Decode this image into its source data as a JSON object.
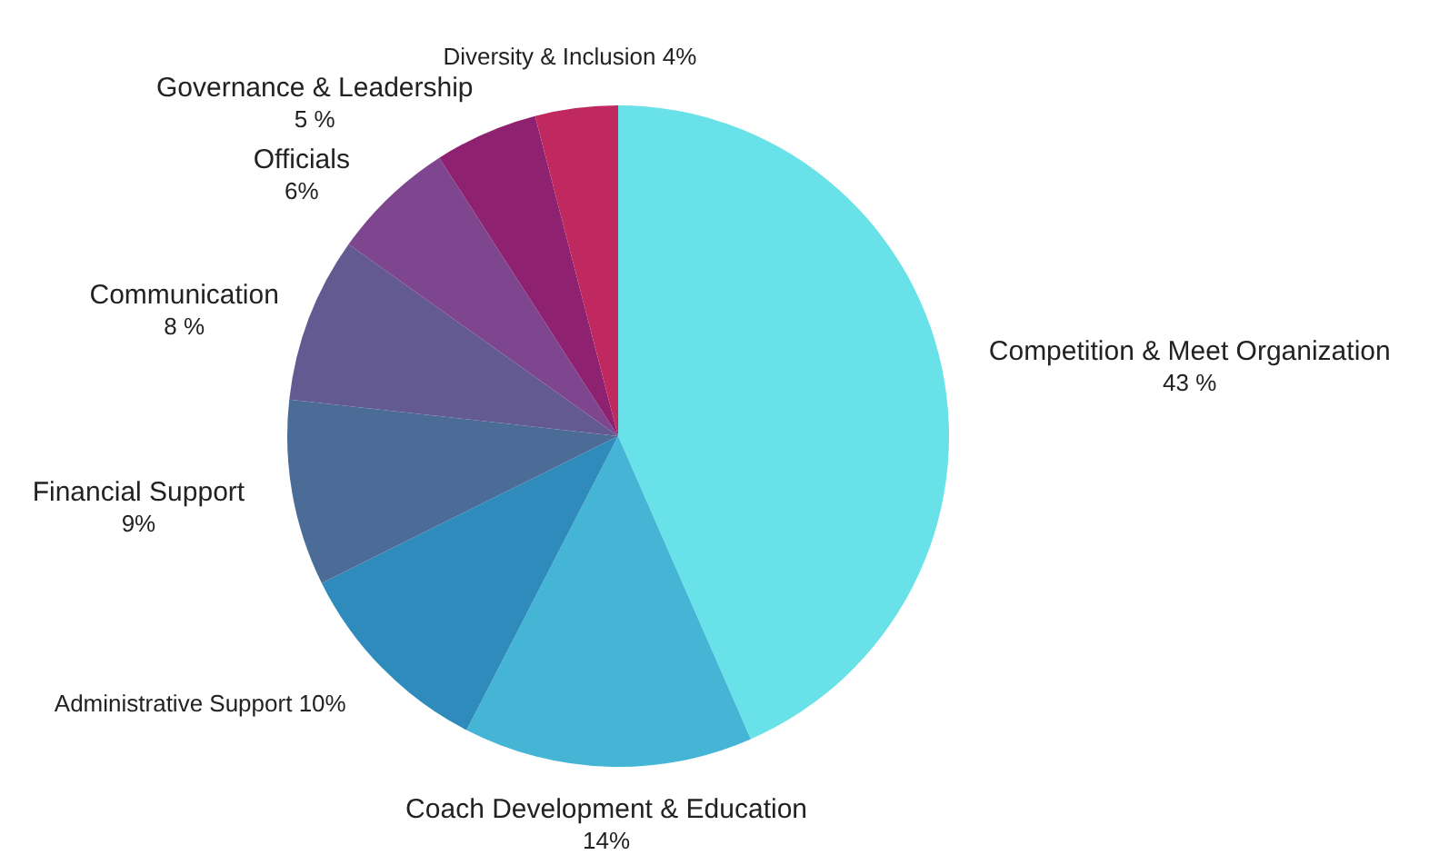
{
  "chart_data": {
    "type": "pie",
    "categories": [
      "Competition & Meet Organization",
      "Coach Development & Education",
      "Administrative Support",
      "Financial Support",
      "Communication",
      "Officials",
      "Governance & Leadership",
      "Diversity & Inclusion"
    ],
    "values": [
      43,
      14,
      10,
      9,
      8,
      6,
      5,
      4
    ],
    "value_labels": [
      "43 %",
      "14%",
      "10%",
      "9%",
      "8 %",
      "6%",
      "5 %",
      "4%"
    ],
    "colors": [
      "#68e2e8",
      "#45b5d5",
      "#2e8bbb",
      "#4a6c96",
      "#625a90",
      "#7e468f",
      "#8e2270",
      "#c02860"
    ]
  }
}
